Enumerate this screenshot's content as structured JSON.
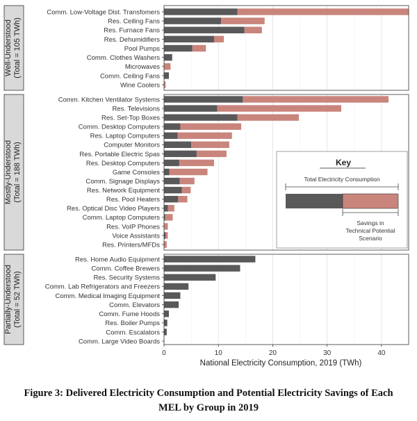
{
  "chart_data": {
    "type": "bar",
    "xlabel": "National Electricity Consumption, 2019 (TWh)",
    "xlim": [
      0,
      45
    ],
    "xticks": [
      0,
      10,
      20,
      30,
      40
    ],
    "grid": true,
    "colors": {
      "consumption": "#595959",
      "savings": "#c9857c",
      "panel_strip": "#d9d9d9"
    },
    "groups": [
      {
        "label_lines": [
          "Well-Understood",
          "(Total = 105 TWh)"
        ],
        "items": [
          {
            "name": "Comm. Low-Voltage Dist. Transfomers",
            "consumption": 13.5,
            "savings": 31.5
          },
          {
            "name": "Res. Ceiling Fans",
            "consumption": 10.5,
            "savings": 8.0
          },
          {
            "name": "Res. Furnace Fans",
            "consumption": 14.8,
            "savings": 3.2
          },
          {
            "name": "Res. Dehumidifiers",
            "consumption": 9.2,
            "savings": 1.8
          },
          {
            "name": "Pool Pumps",
            "consumption": 5.2,
            "savings": 2.5
          },
          {
            "name": "Comm. Clothes Washers",
            "consumption": 1.5,
            "savings": 0
          },
          {
            "name": "Microwaves",
            "consumption": 0,
            "savings": 1.2
          },
          {
            "name": "Comm. Ceiling Fans",
            "consumption": 0.9,
            "savings": 0
          },
          {
            "name": "Wine Coolers",
            "consumption": 0,
            "savings": 0.3
          }
        ]
      },
      {
        "label_lines": [
          "Mostly-Understood",
          "(Total = 188 TWh)"
        ],
        "items": [
          {
            "name": "Comm. Kitchen Ventilator Systems",
            "consumption": 14.5,
            "savings": 26.8
          },
          {
            "name": "Res. Televisions",
            "consumption": 9.8,
            "savings": 22.8
          },
          {
            "name": "Res. Set-Top Boxes",
            "consumption": 13.5,
            "savings": 11.3
          },
          {
            "name": "Comm. Desktop Computers",
            "consumption": 3.0,
            "savings": 11.2
          },
          {
            "name": "Res. Laptop Computers",
            "consumption": 2.5,
            "savings": 10.0
          },
          {
            "name": "Computer Monitors",
            "consumption": 5.0,
            "savings": 7.0
          },
          {
            "name": "Res. Portable Electric Spas",
            "consumption": 6.0,
            "savings": 5.5
          },
          {
            "name": "Res. Desktop Computers",
            "consumption": 2.8,
            "savings": 6.4
          },
          {
            "name": "Game Consoles",
            "consumption": 1.0,
            "savings": 7.0
          },
          {
            "name": "Comm. Signage Displays",
            "consumption": 2.9,
            "savings": 2.7
          },
          {
            "name": "Res. Network Equipment",
            "consumption": 3.3,
            "savings": 1.6
          },
          {
            "name": "Res. Pool Heaters",
            "consumption": 2.6,
            "savings": 1.7
          },
          {
            "name": "Res. Optical Disc Video Players",
            "consumption": 0.7,
            "savings": 1.2
          },
          {
            "name": "Comm. Laptop Computers",
            "consumption": 0.2,
            "savings": 1.4
          },
          {
            "name": "Res. VoIP Phones",
            "consumption": 0,
            "savings": 0.7
          },
          {
            "name": "Voice Assistants",
            "consumption": 0.3,
            "savings": 0.4
          },
          {
            "name": "Res. Printers/MFDs",
            "consumption": 0,
            "savings": 0.5
          }
        ]
      },
      {
        "label_lines": [
          "Partially-Understood",
          "(Total = 52 TWh)"
        ],
        "items": [
          {
            "name": "Res. Home Audio Equipment",
            "consumption": 16.8,
            "savings": 0
          },
          {
            "name": "Comm. Coffee Brewers",
            "consumption": 14.0,
            "savings": 0
          },
          {
            "name": "Res. Security Systems",
            "consumption": 9.5,
            "savings": 0
          },
          {
            "name": "Comm. Lab Refrigerators and Freezers",
            "consumption": 4.5,
            "savings": 0
          },
          {
            "name": "Comm. Medical Imaging Equipment",
            "consumption": 3.0,
            "savings": 0
          },
          {
            "name": "Comm. Elevators",
            "consumption": 2.7,
            "savings": 0
          },
          {
            "name": "Comm. Fume Hoods",
            "consumption": 0.9,
            "savings": 0
          },
          {
            "name": "Res. Boiler Pumps",
            "consumption": 0.6,
            "savings": 0
          },
          {
            "name": "Comm. Escalators",
            "consumption": 0.5,
            "savings": 0
          },
          {
            "name": "Comm. Large Video Boards",
            "consumption": 0,
            "savings": 0
          }
        ]
      }
    ],
    "key": {
      "title": "Key",
      "total_label": "Total Electricity Consumption",
      "savings_label_lines": [
        "Savings in",
        "Technical Potential",
        "Scenario"
      ]
    }
  },
  "caption": {
    "line1": "Figure 3: Delivered Electricity Consumption and Potential Electricity Savings of Each",
    "line2": "MEL by Group in 2019"
  }
}
